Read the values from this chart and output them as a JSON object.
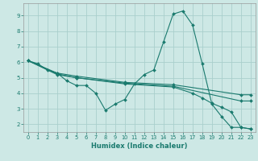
{
  "title": "",
  "xlabel": "Humidex (Indice chaleur)",
  "ylabel": "",
  "background_color": "#cde8e5",
  "grid_color": "#aacfcc",
  "line_color": "#1a7a6e",
  "xlim": [
    -0.5,
    23.5
  ],
  "ylim": [
    1.5,
    9.8
  ],
  "yticks": [
    2,
    3,
    4,
    5,
    6,
    7,
    8,
    9
  ],
  "xticks": [
    0,
    1,
    2,
    3,
    4,
    5,
    6,
    7,
    8,
    9,
    10,
    11,
    12,
    13,
    14,
    15,
    16,
    17,
    18,
    19,
    20,
    21,
    22,
    23
  ],
  "lines": [
    {
      "x": [
        0,
        1,
        2,
        3,
        4,
        5,
        6,
        7,
        8,
        9,
        10,
        11,
        12,
        13,
        14,
        15,
        16,
        17,
        18,
        19,
        20,
        21,
        22,
        23
      ],
      "y": [
        6.1,
        5.9,
        5.5,
        5.3,
        4.8,
        4.5,
        4.5,
        4.0,
        2.9,
        3.3,
        3.6,
        4.6,
        5.2,
        5.5,
        7.3,
        9.1,
        9.3,
        8.4,
        5.9,
        3.3,
        2.5,
        1.8,
        1.8,
        1.7
      ]
    },
    {
      "x": [
        0,
        3,
        5,
        10,
        15,
        22,
        23
      ],
      "y": [
        6.1,
        5.3,
        5.1,
        4.7,
        4.55,
        3.9,
        3.9
      ]
    },
    {
      "x": [
        0,
        3,
        5,
        10,
        15,
        22,
        23
      ],
      "y": [
        6.1,
        5.25,
        5.0,
        4.65,
        4.45,
        3.5,
        3.5
      ]
    },
    {
      "x": [
        0,
        3,
        5,
        10,
        15,
        17,
        18,
        19,
        20,
        21,
        22,
        23
      ],
      "y": [
        6.1,
        5.2,
        5.0,
        4.6,
        4.4,
        4.0,
        3.7,
        3.35,
        3.1,
        2.8,
        1.8,
        1.7
      ]
    }
  ]
}
